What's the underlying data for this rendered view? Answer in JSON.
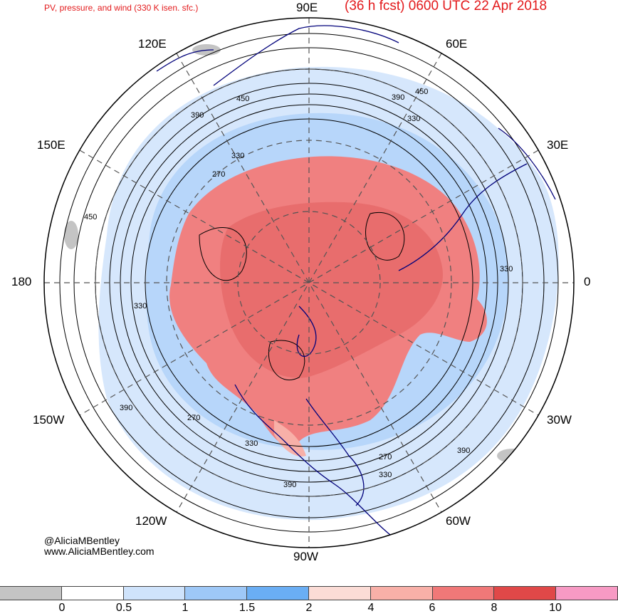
{
  "header": {
    "subtitle": "PV, pressure, and wind (330 K isen. sfc.)",
    "title": "(36 h fcst) 0600 UTC 22 Apr 2018"
  },
  "map": {
    "projection": "north-polar-stereographic",
    "longitude_labels": {
      "lon_90E": "90E",
      "lon_60E": "60E",
      "lon_30E": "30E",
      "lon_0": "0",
      "lon_30W": "30W",
      "lon_60W": "60W",
      "lon_90W": "90W",
      "lon_120W": "120W",
      "lon_150W": "150W",
      "lon_180": "180",
      "lon_150E": "150E",
      "lon_120E": "120E"
    },
    "contour_labels": [
      "450",
      "390",
      "330",
      "450",
      "390",
      "330",
      "270",
      "450",
      "330",
      "330",
      "390",
      "270",
      "330",
      "270",
      "390",
      "330",
      "390"
    ],
    "colors": {
      "pv_high": "#f08080",
      "pv_mid": "#f8c0b8",
      "pv_low_blue": "#a6cef5",
      "coastline": "#00007a"
    }
  },
  "credit": {
    "handle": "@AliciaMBentley",
    "site": "www.AliciaMBentley.com"
  },
  "colorbar": {
    "colors": [
      "#c4c4c4",
      "#ffffff",
      "#cfe3fb",
      "#9ec8f7",
      "#6aaef4",
      "#fbdcd6",
      "#f8b0a8",
      "#f07878",
      "#e04848",
      "#f79ac4"
    ],
    "ticks": [
      "0",
      "0.5",
      "1",
      "1.5",
      "2",
      "4",
      "6",
      "8",
      "10"
    ]
  }
}
